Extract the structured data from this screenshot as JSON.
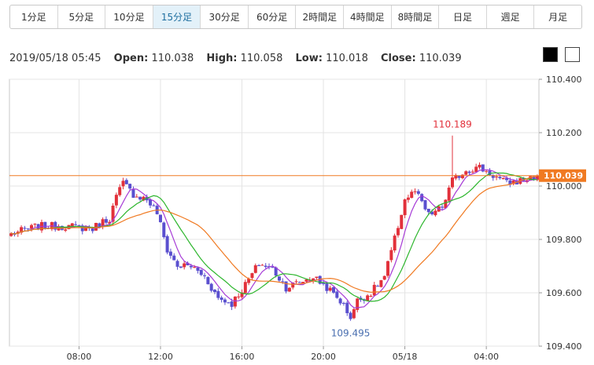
{
  "timeframes": [
    "1分足",
    "5分足",
    "10分足",
    "15分足",
    "30分足",
    "60分足",
    "2時間足",
    "4時間足",
    "8時間足",
    "日足",
    "週足",
    "月足"
  ],
  "active_timeframe": 3,
  "ohlc": {
    "datetime": "2019/05/18 05:45",
    "open_label": "Open:",
    "open": "110.038",
    "high_label": "High:",
    "high": "110.058",
    "low_label": "Low:",
    "low": "110.018",
    "close_label": "Close:",
    "close": "110.039"
  },
  "theme_swatches": [
    {
      "name": "black",
      "color": "#000000"
    },
    {
      "name": "white",
      "color": "#ffffff"
    }
  ],
  "colors": {
    "up": "#e2313b",
    "down": "#5a4fcf",
    "ma_short": "#a63bd6",
    "ma_mid": "#2db62d",
    "ma_long": "#f07a22",
    "price_line": "#f07a22",
    "price_badge": "#f07a22"
  },
  "chart_data": {
    "type": "candlestick",
    "title": "",
    "xlabel": "",
    "ylabel": "",
    "ylim": [
      109.4,
      110.4
    ],
    "yticks": [
      "110.400",
      "110.200",
      "110.000",
      "109.800",
      "109.600",
      "109.400"
    ],
    "x_count": 156,
    "xtick_labels": [
      {
        "index": 20,
        "label": "08:00"
      },
      {
        "index": 44,
        "label": "12:00"
      },
      {
        "index": 68,
        "label": "16:00"
      },
      {
        "index": 92,
        "label": "20:00"
      },
      {
        "index": 116,
        "label": "05/18"
      },
      {
        "index": 140,
        "label": "04:00"
      }
    ],
    "current_price": 110.039,
    "current_price_label": "110.039",
    "annotations": [
      {
        "text": "110.189",
        "x_index": 130,
        "y": 110.189,
        "position": "above",
        "color": "#e2313b"
      },
      {
        "text": "109.495",
        "x_index": 100,
        "y": 109.495,
        "position": "below",
        "color": "#4a6fb0"
      }
    ],
    "anchors": [
      [
        0,
        109.82
      ],
      [
        8,
        109.85
      ],
      [
        16,
        109.85
      ],
      [
        24,
        109.84
      ],
      [
        26,
        109.86
      ],
      [
        29,
        109.88
      ],
      [
        31,
        109.96
      ],
      [
        33,
        110.01
      ],
      [
        36,
        109.97
      ],
      [
        40,
        109.95
      ],
      [
        43,
        109.9
      ],
      [
        46,
        109.76
      ],
      [
        49,
        109.7
      ],
      [
        53,
        109.7
      ],
      [
        57,
        109.66
      ],
      [
        61,
        109.58
      ],
      [
        65,
        109.56
      ],
      [
        69,
        109.63
      ],
      [
        73,
        109.71
      ],
      [
        77,
        109.69
      ],
      [
        81,
        109.62
      ],
      [
        85,
        109.64
      ],
      [
        89,
        109.66
      ],
      [
        93,
        109.62
      ],
      [
        97,
        109.57
      ],
      [
        100,
        109.51
      ],
      [
        102,
        109.57
      ],
      [
        106,
        109.6
      ],
      [
        110,
        109.66
      ],
      [
        113,
        109.8
      ],
      [
        116,
        109.95
      ],
      [
        119,
        109.98
      ],
      [
        123,
        109.89
      ],
      [
        127,
        109.92
      ],
      [
        130,
        110.02
      ],
      [
        134,
        110.06
      ],
      [
        138,
        110.07
      ],
      [
        142,
        110.04
      ],
      [
        146,
        110.01
      ],
      [
        150,
        110.02
      ],
      [
        155,
        110.039
      ]
    ],
    "series": [
      {
        "name": "",
        "period": 6,
        "color": "#a63bd6"
      },
      {
        "name": "",
        "period": 13,
        "color": "#2db62d"
      },
      {
        "name": "",
        "period": 26,
        "color": "#f07a22"
      }
    ]
  }
}
